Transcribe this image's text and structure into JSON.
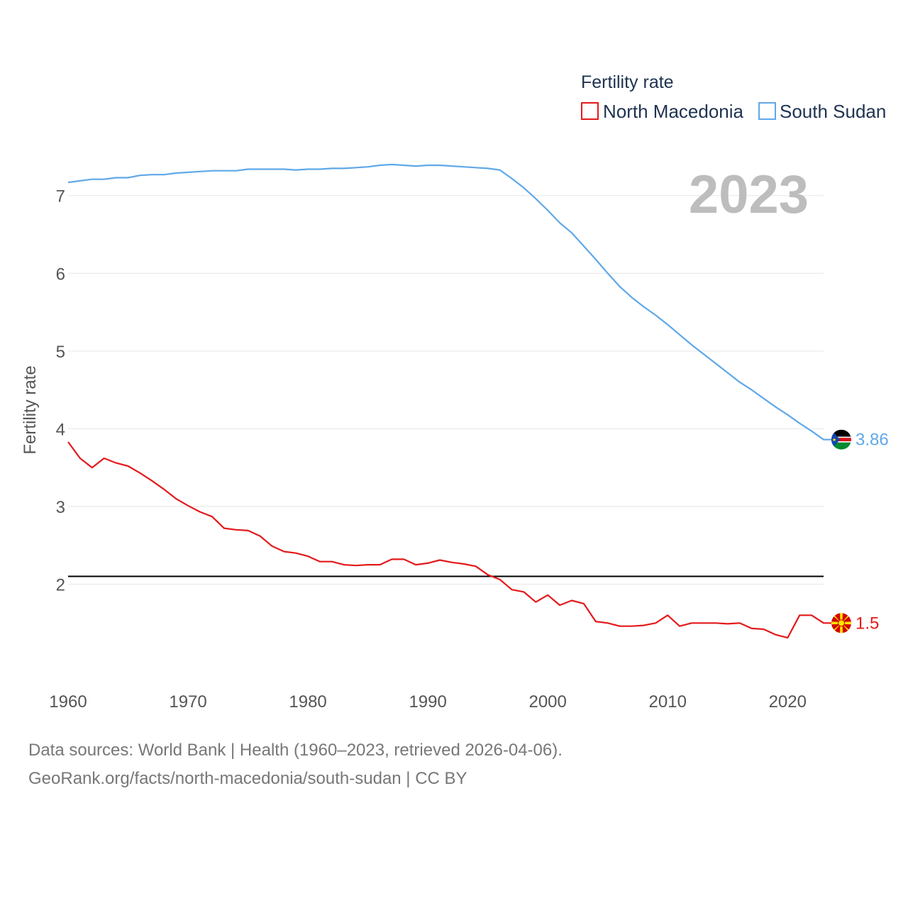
{
  "chart_data": {
    "type": "line",
    "title": "Fertility rate",
    "ylabel": "Fertility rate",
    "xlabel": "",
    "xlim": [
      1960,
      2023
    ],
    "ylim": [
      0.9,
      7.6
    ],
    "yticks": [
      2,
      3,
      4,
      5,
      6,
      7
    ],
    "xticks": [
      1960,
      1970,
      1980,
      1990,
      2000,
      2010,
      2020
    ],
    "year_label": "2023",
    "reference_line": 2.1,
    "legend": [
      "North Macedonia",
      "South Sudan"
    ],
    "x": [
      1960,
      1961,
      1962,
      1963,
      1964,
      1965,
      1966,
      1967,
      1968,
      1969,
      1970,
      1971,
      1972,
      1973,
      1974,
      1975,
      1976,
      1977,
      1978,
      1979,
      1980,
      1981,
      1982,
      1983,
      1984,
      1985,
      1986,
      1987,
      1988,
      1989,
      1990,
      1991,
      1992,
      1993,
      1994,
      1995,
      1996,
      1997,
      1998,
      1999,
      2000,
      2001,
      2002,
      2003,
      2004,
      2005,
      2006,
      2007,
      2008,
      2009,
      2010,
      2011,
      2012,
      2013,
      2014,
      2015,
      2016,
      2017,
      2018,
      2019,
      2020,
      2021,
      2022,
      2023
    ],
    "series": [
      {
        "name": "North Macedonia",
        "color": "#e31a1c",
        "end_label": "1.5",
        "values": [
          3.83,
          3.62,
          3.5,
          3.62,
          3.56,
          3.52,
          3.43,
          3.33,
          3.22,
          3.1,
          3.01,
          2.93,
          2.87,
          2.72,
          2.7,
          2.69,
          2.62,
          2.49,
          2.42,
          2.4,
          2.36,
          2.29,
          2.29,
          2.25,
          2.24,
          2.25,
          2.25,
          2.32,
          2.32,
          2.25,
          2.27,
          2.31,
          2.28,
          2.26,
          2.23,
          2.12,
          2.06,
          1.93,
          1.9,
          1.77,
          1.86,
          1.73,
          1.79,
          1.75,
          1.52,
          1.5,
          1.46,
          1.46,
          1.47,
          1.5,
          1.6,
          1.46,
          1.5,
          1.5,
          1.5,
          1.49,
          1.5,
          1.43,
          1.42,
          1.35,
          1.31,
          1.6,
          1.6,
          1.5
        ]
      },
      {
        "name": "South Sudan",
        "color": "#5fa8e8",
        "end_label": "3.86",
        "values": [
          7.17,
          7.19,
          7.21,
          7.21,
          7.23,
          7.23,
          7.26,
          7.27,
          7.27,
          7.29,
          7.3,
          7.31,
          7.32,
          7.32,
          7.32,
          7.34,
          7.34,
          7.34,
          7.34,
          7.33,
          7.34,
          7.34,
          7.35,
          7.35,
          7.36,
          7.37,
          7.39,
          7.4,
          7.39,
          7.38,
          7.39,
          7.39,
          7.38,
          7.37,
          7.36,
          7.35,
          7.33,
          7.22,
          7.1,
          6.96,
          6.81,
          6.65,
          6.52,
          6.35,
          6.18,
          6.0,
          5.83,
          5.69,
          5.57,
          5.46,
          5.34,
          5.21,
          5.08,
          4.96,
          4.84,
          4.72,
          4.6,
          4.5,
          4.39,
          4.28,
          4.18,
          4.07,
          3.97,
          3.86
        ]
      }
    ]
  },
  "footer": {
    "line1": "Data sources: World Bank | Health (1960–2023, retrieved 2026-04-06).",
    "line2": "GeoRank.org/facts/north-macedonia/south-sudan | CC BY"
  }
}
